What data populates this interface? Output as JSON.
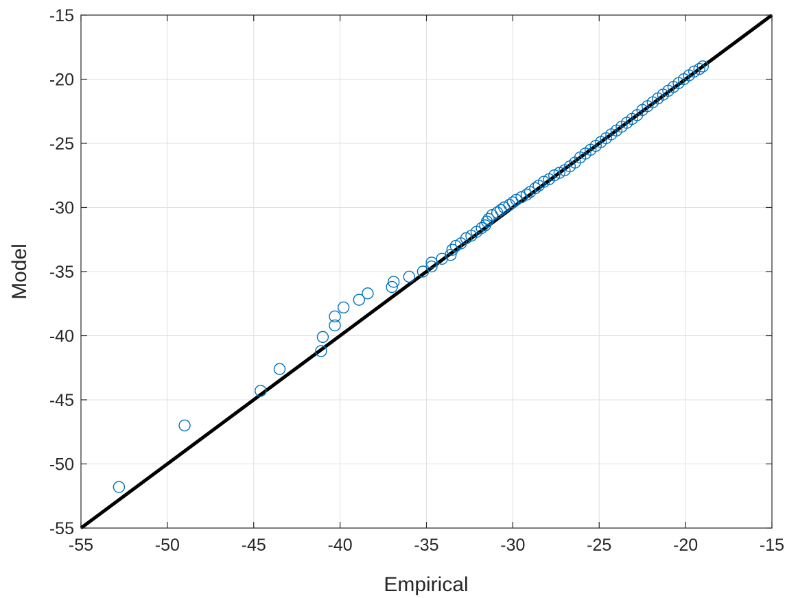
{
  "chart_data": {
    "type": "scatter",
    "title": "",
    "xlabel": "Empirical",
    "ylabel": "Model",
    "xlim": [
      -55,
      -15
    ],
    "ylim": [
      -55,
      -15
    ],
    "xticks": [
      -55,
      -50,
      -45,
      -40,
      -35,
      -30,
      -25,
      -20,
      -15
    ],
    "yticks": [
      -55,
      -50,
      -45,
      -40,
      -35,
      -30,
      -25,
      -20,
      -15
    ],
    "xtick_labels": [
      "-55",
      "-50",
      "-45",
      "-40",
      "-35",
      "-30",
      "-25",
      "-20",
      "-15"
    ],
    "ytick_labels": [
      "-55",
      "-50",
      "-45",
      "-40",
      "-35",
      "-30",
      "-25",
      "-20",
      "-15"
    ],
    "grid": true,
    "reference_line": {
      "x": [
        -55,
        -15
      ],
      "y": [
        -55,
        -15
      ],
      "color": "#000000"
    },
    "series": [
      {
        "marker": "open-circle",
        "color": "#0072BD",
        "x": [
          -52.8,
          -49.0,
          -44.6,
          -43.5,
          -41.1,
          -41.0,
          -40.3,
          -40.3,
          -39.8,
          -38.9,
          -38.4,
          -37.0,
          -36.9,
          -36.0,
          -35.2,
          -34.7,
          -34.7,
          -34.1,
          -33.6,
          -33.5,
          -33.3,
          -33.0,
          -32.7,
          -32.4,
          -32.1,
          -31.8,
          -31.6,
          -31.5,
          -31.4,
          -31.2,
          -30.9,
          -30.7,
          -30.5,
          -30.2,
          -30.0,
          -29.8,
          -29.5,
          -29.2,
          -29.0,
          -28.7,
          -28.5,
          -28.2,
          -27.9,
          -27.6,
          -27.3,
          -27.0,
          -26.7,
          -26.4,
          -26.1,
          -25.8,
          -25.5,
          -25.2,
          -24.9,
          -24.6,
          -24.3,
          -24.0,
          -23.7,
          -23.4,
          -23.1,
          -22.8,
          -22.5,
          -22.2,
          -21.9,
          -21.6,
          -21.3,
          -21.0,
          -20.7,
          -20.4,
          -20.1,
          -19.8,
          -19.5,
          -19.2,
          -19.0
        ],
        "y": [
          -51.8,
          -47.0,
          -44.3,
          -42.6,
          -41.2,
          -40.1,
          -39.2,
          -38.5,
          -37.8,
          -37.2,
          -36.7,
          -36.2,
          -35.8,
          -35.4,
          -35.0,
          -34.6,
          -34.3,
          -34.0,
          -33.7,
          -33.3,
          -33.0,
          -32.8,
          -32.4,
          -32.2,
          -31.9,
          -31.6,
          -31.4,
          -31.1,
          -30.9,
          -30.6,
          -30.4,
          -30.2,
          -30.0,
          -29.8,
          -29.6,
          -29.4,
          -29.2,
          -29.0,
          -28.8,
          -28.5,
          -28.3,
          -28.0,
          -27.8,
          -27.5,
          -27.3,
          -27.1,
          -26.8,
          -26.5,
          -26.1,
          -25.8,
          -25.5,
          -25.2,
          -24.9,
          -24.6,
          -24.3,
          -24.0,
          -23.7,
          -23.4,
          -23.1,
          -22.8,
          -22.4,
          -22.1,
          -21.8,
          -21.5,
          -21.2,
          -20.9,
          -20.6,
          -20.3,
          -20.0,
          -19.7,
          -19.4,
          -19.2,
          -19.0
        ]
      }
    ]
  }
}
